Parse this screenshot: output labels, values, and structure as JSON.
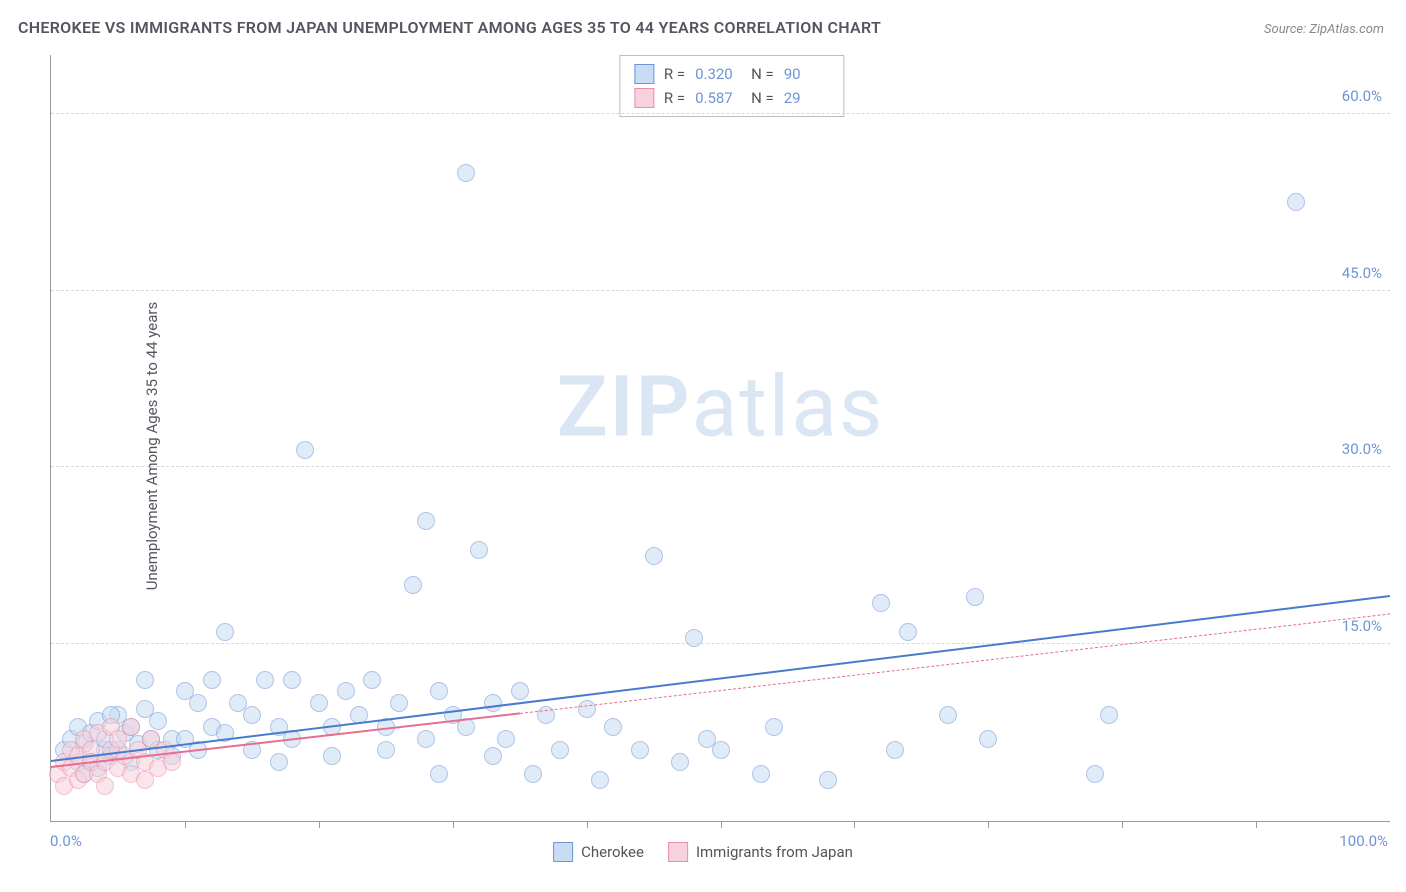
{
  "chart": {
    "type": "scatter",
    "title": "CHEROKEE VS IMMIGRANTS FROM JAPAN UNEMPLOYMENT AMONG AGES 35 TO 44 YEARS CORRELATION CHART",
    "source_label": "Source: ZipAtlas.com",
    "y_axis_label": "Unemployment Among Ages 35 to 44 years",
    "watermark_a": "ZIP",
    "watermark_b": "atlas",
    "background_color": "#ffffff",
    "grid_color": "#d8d8d8",
    "axis_color": "#999999",
    "tick_label_color": "#6f94d8",
    "title_color": "#555560",
    "title_fontsize": 16,
    "label_fontsize": 15,
    "xlim": [
      0,
      100
    ],
    "ylim": [
      0,
      65
    ],
    "y_ticks": [
      15,
      30,
      45,
      60
    ],
    "y_tick_labels": [
      "15.0%",
      "30.0%",
      "45.0%",
      "60.0%"
    ],
    "x_tick_labels": {
      "left": "0.0%",
      "right": "100.0%"
    },
    "x_minor_tick_positions": [
      10,
      20,
      30,
      40,
      50,
      60,
      70,
      80,
      90
    ],
    "marker_radius": 9,
    "marker_opacity": 0.55,
    "series": [
      {
        "name": "Cherokee",
        "fill_color": "#c8dcf4",
        "stroke_color": "#6f94d8",
        "trend_color": "#4a7ad0",
        "trend_width": 2.5,
        "trend_dash": "none",
        "trend_p1": [
          0,
          5.0
        ],
        "trend_p2": [
          100,
          19.0
        ],
        "R": "0.320",
        "N": "90",
        "points": [
          [
            1,
            6
          ],
          [
            1.5,
            7
          ],
          [
            2,
            5
          ],
          [
            2,
            8
          ],
          [
            2.5,
            6.5
          ],
          [
            3,
            7.5
          ],
          [
            3,
            5
          ],
          [
            3.5,
            8.5
          ],
          [
            4,
            6
          ],
          [
            4,
            7
          ],
          [
            4.5,
            5.5
          ],
          [
            5,
            9
          ],
          [
            5,
            6
          ],
          [
            5.5,
            7.5
          ],
          [
            6,
            8
          ],
          [
            6,
            5
          ],
          [
            6.5,
            6.5
          ],
          [
            7,
            9.5
          ],
          [
            7,
            12
          ],
          [
            7.5,
            7
          ],
          [
            8,
            6
          ],
          [
            8,
            8.5
          ],
          [
            9,
            7
          ],
          [
            9,
            5.5
          ],
          [
            10,
            11
          ],
          [
            10,
            7
          ],
          [
            11,
            10
          ],
          [
            11,
            6
          ],
          [
            12,
            8
          ],
          [
            12,
            12
          ],
          [
            13,
            7.5
          ],
          [
            13,
            16
          ],
          [
            14,
            10
          ],
          [
            15,
            9
          ],
          [
            15,
            6
          ],
          [
            16,
            12
          ],
          [
            17,
            8
          ],
          [
            17,
            5
          ],
          [
            18,
            12
          ],
          [
            18,
            7
          ],
          [
            19,
            31.5
          ],
          [
            20,
            10
          ],
          [
            21,
            8
          ],
          [
            21,
            5.5
          ],
          [
            22,
            11
          ],
          [
            23,
            9
          ],
          [
            24,
            12
          ],
          [
            25,
            8
          ],
          [
            25,
            6
          ],
          [
            26,
            10
          ],
          [
            27,
            20
          ],
          [
            28,
            7
          ],
          [
            28,
            25.5
          ],
          [
            29,
            11
          ],
          [
            29,
            4
          ],
          [
            30,
            9
          ],
          [
            31,
            8
          ],
          [
            31,
            55
          ],
          [
            32,
            23
          ],
          [
            33,
            5.5
          ],
          [
            33,
            10
          ],
          [
            34,
            7
          ],
          [
            35,
            11
          ],
          [
            36,
            4
          ],
          [
            37,
            9
          ],
          [
            38,
            6
          ],
          [
            40,
            9.5
          ],
          [
            41,
            3.5
          ],
          [
            42,
            8
          ],
          [
            44,
            6
          ],
          [
            45,
            22.5
          ],
          [
            47,
            5
          ],
          [
            48,
            15.5
          ],
          [
            49,
            7
          ],
          [
            50,
            6
          ],
          [
            53,
            4
          ],
          [
            54,
            8
          ],
          [
            58,
            3.5
          ],
          [
            62,
            18.5
          ],
          [
            63,
            6
          ],
          [
            64,
            16
          ],
          [
            67,
            9
          ],
          [
            69,
            19
          ],
          [
            70,
            7
          ],
          [
            78,
            4
          ],
          [
            79,
            9
          ],
          [
            93,
            52.5
          ],
          [
            2.5,
            4
          ],
          [
            3.5,
            4.5
          ],
          [
            4.5,
            9
          ]
        ]
      },
      {
        "name": "Immigrants from Japan",
        "fill_color": "#f7d1db",
        "stroke_color": "#e98fa8",
        "trend_color": "#e86d8e",
        "trend_width": 2,
        "trend_solid_until_x": 35,
        "trend_dash_after": true,
        "trend_p1": [
          0,
          4.5
        ],
        "trend_p2": [
          100,
          17.5
        ],
        "R": "0.587",
        "N": "29",
        "points": [
          [
            0.5,
            4
          ],
          [
            1,
            5
          ],
          [
            1,
            3
          ],
          [
            1.5,
            6
          ],
          [
            1.5,
            4.5
          ],
          [
            2,
            5.5
          ],
          [
            2,
            3.5
          ],
          [
            2.5,
            7
          ],
          [
            2.5,
            4
          ],
          [
            3,
            6
          ],
          [
            3,
            5
          ],
          [
            3.5,
            4
          ],
          [
            3.5,
            7.5
          ],
          [
            4,
            5
          ],
          [
            4,
            3
          ],
          [
            4.5,
            6
          ],
          [
            4.5,
            8
          ],
          [
            5,
            4.5
          ],
          [
            5,
            7
          ],
          [
            5.5,
            5.5
          ],
          [
            6,
            4
          ],
          [
            6,
            8
          ],
          [
            6.5,
            6
          ],
          [
            7,
            5
          ],
          [
            7,
            3.5
          ],
          [
            7.5,
            7
          ],
          [
            8,
            4.5
          ],
          [
            8.5,
            6
          ],
          [
            9,
            5
          ]
        ]
      }
    ],
    "legend_top_labels": {
      "R": "R =",
      "N": "N ="
    },
    "legend_bottom": [
      "Cherokee",
      "Immigrants from Japan"
    ]
  }
}
